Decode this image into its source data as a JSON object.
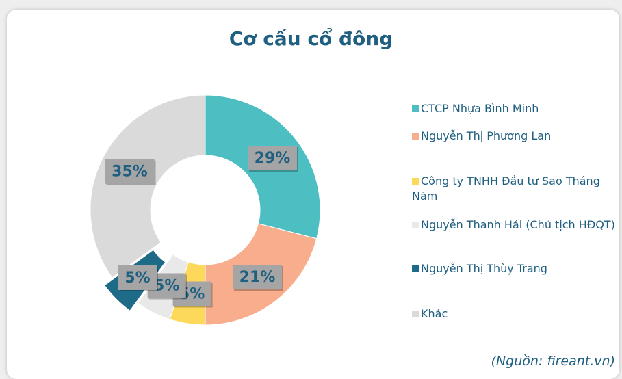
{
  "chart_data": {
    "type": "donut",
    "title": "Cơ cấu cổ đông",
    "categories": [
      "CTCP Nhựa Bình Minh",
      "Nguyễn Thị Phương Lan",
      "Công ty TNHH Đầu tư Sao Tháng Năm",
      "Nguyễn Thanh Hải (Chủ tịch HĐQT)",
      "Nguyễn Thị Thùy Trang",
      "Khác"
    ],
    "values": [
      29,
      21,
      5,
      5,
      5,
      35
    ],
    "value_labels": [
      "29%",
      "21%",
      "5%",
      "5%",
      "5%",
      "35%"
    ],
    "colors": [
      "#4dbfc3",
      "#f8ae8c",
      "#fcd95a",
      "#e9e9e9",
      "#1e6b88",
      "#dadada"
    ],
    "legend": "right",
    "source": "(Nguồn: fireant.vn)"
  }
}
